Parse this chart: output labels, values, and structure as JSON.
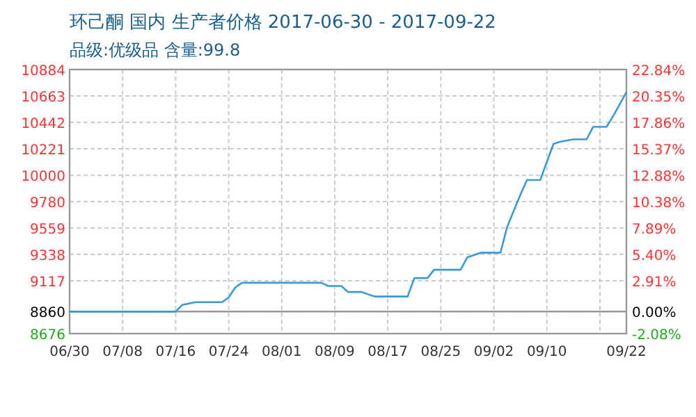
{
  "chart_data": {
    "type": "line",
    "title": "环己酮 国内 生产者价格 2017-06-30 - 2017-09-22",
    "subtitle": "品级:优级品 含量:99.8",
    "x": [
      "2017-06-30",
      "2017-07-16",
      "2017-07-17",
      "2017-07-19",
      "2017-07-23",
      "2017-07-24",
      "2017-07-25",
      "2017-07-26",
      "2017-08-07",
      "2017-08-08",
      "2017-08-10",
      "2017-08-11",
      "2017-08-13",
      "2017-08-15",
      "2017-08-20",
      "2017-08-21",
      "2017-08-23",
      "2017-08-24",
      "2017-08-28",
      "2017-08-29",
      "2017-08-31",
      "2017-09-03",
      "2017-09-04",
      "2017-09-06",
      "2017-09-07",
      "2017-09-09",
      "2017-09-11",
      "2017-09-12",
      "2017-09-14",
      "2017-09-16",
      "2017-09-17",
      "2017-09-19",
      "2017-09-20",
      "2017-09-22"
    ],
    "series": [
      {
        "color": "#3a9ad9",
        "values": [
          8860,
          8860,
          8916,
          8939,
          8939,
          8978,
          9062,
          9101,
          9101,
          9074,
          9074,
          9024,
          9024,
          8986,
          8986,
          9140,
          9140,
          9210,
          9210,
          9314,
          9352,
          9352,
          9566,
          9836,
          9960,
          9960,
          10262,
          10280,
          10300,
          10300,
          10405,
          10405,
          10494,
          10695
        ]
      }
    ],
    "xlim": [
      "2017-06-30",
      "2017-09-22"
    ],
    "xticks": [
      {
        "value": "2017-06-30",
        "label": "06/30"
      },
      {
        "value": "2017-07-08",
        "label": "07/08"
      },
      {
        "value": "2017-07-16",
        "label": "07/16"
      },
      {
        "value": "2017-07-24",
        "label": "07/24"
      },
      {
        "value": "2017-08-01",
        "label": "08/01"
      },
      {
        "value": "2017-08-09",
        "label": "08/09"
      },
      {
        "value": "2017-08-17",
        "label": "08/17"
      },
      {
        "value": "2017-08-25",
        "label": "08/25"
      },
      {
        "value": "2017-09-02",
        "label": "09/02"
      },
      {
        "value": "2017-09-10",
        "label": "09/10"
      },
      {
        "value": "2017-09-18",
        "label": null
      },
      {
        "value": "2017-09-22",
        "label": "09/22"
      }
    ],
    "ylim": [
      8676,
      10884
    ],
    "yticks": [
      8676,
      8860,
      9117,
      9338,
      9559,
      9780,
      10000,
      10221,
      10442,
      10663,
      10884
    ],
    "y2lim": [
      -2.08,
      22.84
    ],
    "y2ticks": [
      {
        "value": -2.08,
        "label": "-2.08%"
      },
      {
        "value": 0,
        "label": "0.00%"
      },
      {
        "value": 2.91,
        "label": "2.91%"
      },
      {
        "value": 5.4,
        "label": "5.40%"
      },
      {
        "value": 7.89,
        "label": "7.89%"
      },
      {
        "value": 10.38,
        "label": "10.38%"
      },
      {
        "value": 12.88,
        "label": "12.88%"
      },
      {
        "value": 15.37,
        "label": "15.37%"
      },
      {
        "value": 17.86,
        "label": "17.86%"
      },
      {
        "value": 20.35,
        "label": "20.35%"
      },
      {
        "value": 22.84,
        "label": "22.84%"
      }
    ],
    "ref_lines": [
      {
        "axis": "y2",
        "value": 0,
        "color": "#999999"
      }
    ],
    "grid": true,
    "marker": "none",
    "line_style": "solid"
  }
}
